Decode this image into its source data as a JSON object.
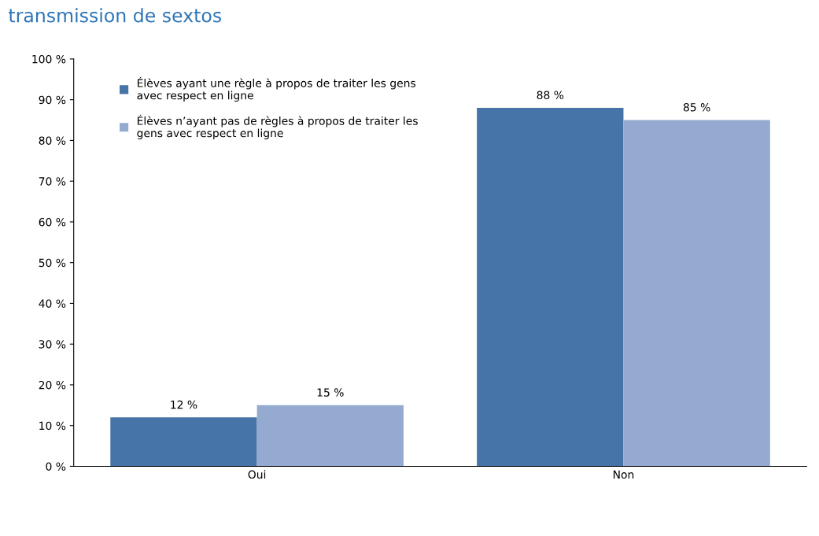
{
  "chart_data": {
    "type": "bar",
    "title": "transmission de sextos",
    "categories": [
      "Oui",
      "Non"
    ],
    "series": [
      {
        "name": "Élèves ayant une règle à propos de traiter les gens\navec respect en ligne",
        "color": "#4674a8",
        "values": [
          12,
          88
        ],
        "value_labels": [
          "12 %",
          "88 %"
        ]
      },
      {
        "name": "Élèves n’ayant pas de règles à propos de traiter les\ngens avec respect en ligne",
        "color": "#95aad1",
        "values": [
          15,
          85
        ],
        "value_labels": [
          "15 %",
          "85 %"
        ]
      }
    ],
    "ylim": [
      0,
      100
    ],
    "yticks": [
      {
        "value": 0,
        "label": "0 %"
      },
      {
        "value": 10,
        "label": "10 %"
      },
      {
        "value": 20,
        "label": "20 %"
      },
      {
        "value": 30,
        "label": "30 %"
      },
      {
        "value": 40,
        "label": "40 %"
      },
      {
        "value": 50,
        "label": "50 %"
      },
      {
        "value": 60,
        "label": "60 %"
      },
      {
        "value": 70,
        "label": "70 %"
      },
      {
        "value": 80,
        "label": "80 %"
      },
      {
        "value": 90,
        "label": "90 %"
      },
      {
        "value": 100,
        "label": "100 %"
      }
    ],
    "grid": false,
    "legend": "top left"
  }
}
